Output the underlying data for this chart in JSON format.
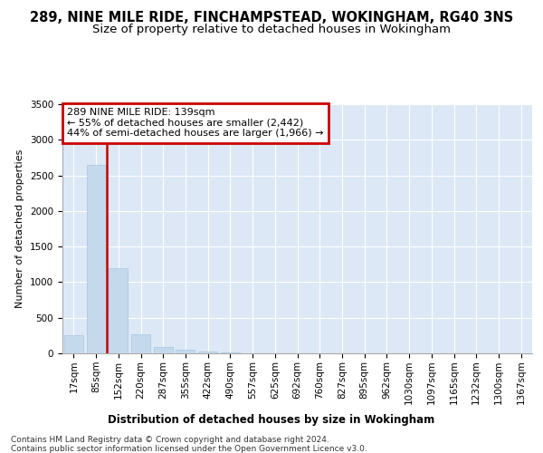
{
  "title": "289, NINE MILE RIDE, FINCHAMPSTEAD, WOKINGHAM, RG40 3NS",
  "subtitle": "Size of property relative to detached houses in Wokingham",
  "xlabel": "Distribution of detached houses by size in Wokingham",
  "ylabel": "Number of detached properties",
  "footer_line1": "Contains HM Land Registry data © Crown copyright and database right 2024.",
  "footer_line2": "Contains public sector information licensed under the Open Government Licence v3.0.",
  "annotation_line1": "289 NINE MILE RIDE: 139sqm",
  "annotation_line2": "← 55% of detached houses are smaller (2,442)",
  "annotation_line3": "44% of semi-detached houses are larger (1,966) →",
  "categories": [
    "17sqm",
    "85sqm",
    "152sqm",
    "220sqm",
    "287sqm",
    "355sqm",
    "422sqm",
    "490sqm",
    "557sqm",
    "625sqm",
    "692sqm",
    "760sqm",
    "827sqm",
    "895sqm",
    "962sqm",
    "1030sqm",
    "1097sqm",
    "1165sqm",
    "1232sqm",
    "1300sqm",
    "1367sqm"
  ],
  "values": [
    250,
    2650,
    1200,
    270,
    95,
    50,
    30,
    10,
    4,
    3,
    2,
    2,
    1,
    1,
    1,
    1,
    0,
    0,
    0,
    0,
    0
  ],
  "bar_color": "#c5d9ed",
  "bar_edge_color": "#a8c4e0",
  "marker_color": "#cc0000",
  "annotation_box_edgecolor": "#cc0000",
  "annotation_box_facecolor": "#ffffff",
  "background_color": "#ffffff",
  "plot_bg_color": "#dce8f5",
  "grid_color": "#ffffff",
  "ylim": [
    0,
    3500
  ],
  "yticks": [
    0,
    500,
    1000,
    1500,
    2000,
    2500,
    3000,
    3500
  ],
  "marker_bar_index": 1,
  "title_fontsize": 10.5,
  "subtitle_fontsize": 9.5,
  "ylabel_fontsize": 8,
  "xlabel_fontsize": 8.5,
  "tick_fontsize": 7.5,
  "annotation_fontsize": 8,
  "footer_fontsize": 6.5
}
